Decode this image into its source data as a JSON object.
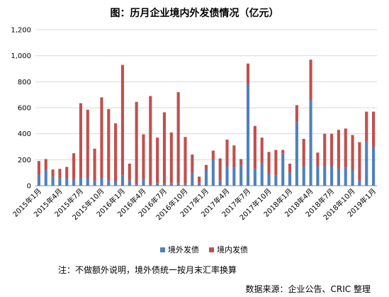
{
  "chart_data": {
    "type": "bar",
    "stacked": true,
    "title": "图：历月企业境内外发债情况（亿元）",
    "xlabel": "",
    "ylabel": "",
    "ylim": [
      0,
      1200
    ],
    "yticks": [
      "0",
      "200",
      "400",
      "600",
      "800",
      "1,000",
      "1,200"
    ],
    "categories": [
      "2015年1月",
      "2015年2月",
      "2015年3月",
      "2015年4月",
      "2015年5月",
      "2015年6月",
      "2015年7月",
      "2015年8月",
      "2015年9月",
      "2015年10月",
      "2015年11月",
      "2015年12月",
      "2016年1月",
      "2016年2月",
      "2016年3月",
      "2016年4月",
      "2016年5月",
      "2016年6月",
      "2016年7月",
      "2016年8月",
      "2016年9月",
      "2016年10月",
      "2016年11月",
      "2016年12月",
      "2017年1月",
      "2017年2月",
      "2017年3月",
      "2017年4月",
      "2017年5月",
      "2017年6月",
      "2017年7月",
      "2017年8月",
      "2017年9月",
      "2017年10月",
      "2017年11月",
      "2017年12月",
      "2018年1月",
      "2018年2月",
      "2018年3月",
      "2018年4月",
      "2018年5月",
      "2018年6月",
      "2018年7月",
      "2018年8月",
      "2018年9月",
      "2018年10月",
      "2018年11月",
      "2018年12月",
      "2019年1月"
    ],
    "xtick_labels": [
      "2015年1月",
      "2015年4月",
      "2015年7月",
      "2015年10月",
      "2016年1月",
      "2016年4月",
      "2016年7月",
      "2016年10月",
      "2017年1月",
      "2017年4月",
      "2017年7月",
      "2017年10月",
      "2018年1月",
      "2018年4月",
      "2018年7月",
      "2018年10月",
      "2019年1月"
    ],
    "xtick_step": 3,
    "series": [
      {
        "name": "境外发债",
        "color": "#4f81bd",
        "values": [
          85,
          125,
          70,
          60,
          60,
          50,
          60,
          60,
          40,
          60,
          40,
          30,
          80,
          40,
          10,
          50,
          10,
          20,
          15,
          20,
          20,
          15,
          100,
          20,
          120,
          200,
          40,
          150,
          140,
          160,
          780,
          130,
          170,
          90,
          80,
          250,
          100,
          490,
          150,
          660,
          150,
          150,
          150,
          130,
          140,
          120,
          40,
          340,
          300
        ]
      },
      {
        "name": "境内发债",
        "color": "#c0504d",
        "values": [
          105,
          80,
          55,
          70,
          85,
          200,
          575,
          525,
          245,
          620,
          550,
          450,
          850,
          130,
          635,
          345,
          680,
          350,
          550,
          390,
          700,
          360,
          140,
          50,
          40,
          70,
          170,
          205,
          170,
          45,
          160,
          330,
          200,
          170,
          195,
          25,
          70,
          130,
          210,
          310,
          105,
          250,
          250,
          300,
          300,
          270,
          295,
          230,
          270
        ]
      }
    ]
  },
  "legend": [
    "境外发债",
    "境内发债"
  ],
  "note": "注：不做额外说明，境外债统一按月末汇率换算",
  "source": "数据来源：企业公告、CRIC 整理"
}
